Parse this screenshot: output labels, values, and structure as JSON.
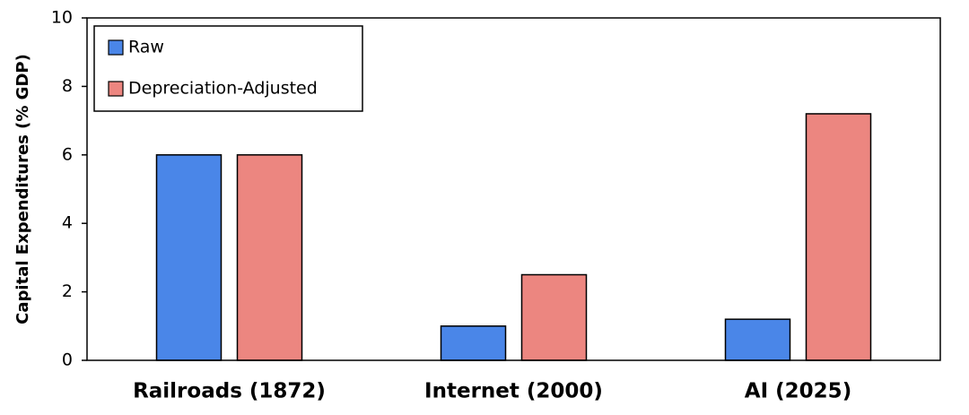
{
  "chart_data": {
    "type": "bar",
    "y_label": "Capital Expenditures (% GDP)",
    "categories": [
      "Railroads (1872)",
      "Internet (2000)",
      "AI (2025)"
    ],
    "series": [
      {
        "name": "Raw",
        "color": "#4a86e8",
        "values": [
          6,
          1,
          1.2
        ]
      },
      {
        "name": "Depreciation-Adjusted",
        "color": "#ec8680",
        "values": [
          6,
          2.5,
          7.2
        ]
      }
    ],
    "ylim": [
      0,
      10
    ],
    "yticks": [
      0,
      2,
      4,
      6,
      8,
      10
    ],
    "legend": "upper left"
  }
}
